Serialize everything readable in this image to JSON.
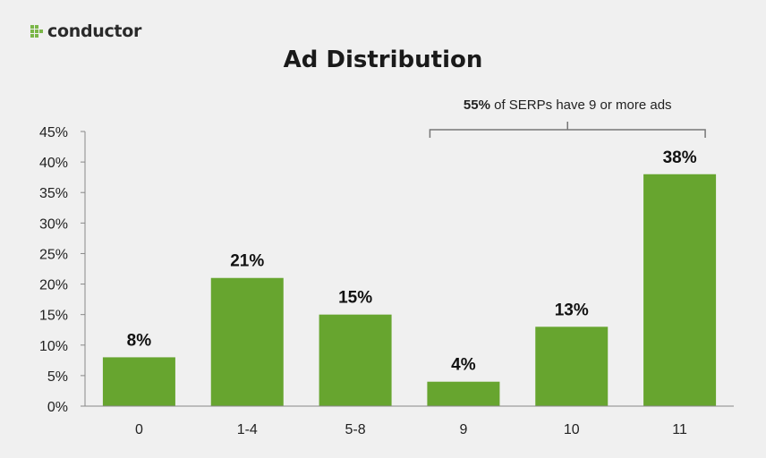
{
  "brand": {
    "name": "conductor",
    "logo_color": "#7ab648"
  },
  "chart_data": {
    "type": "bar",
    "title": "Ad Distribution",
    "xlabel": "",
    "ylabel": "",
    "categories": [
      "0",
      "1-4",
      "5-8",
      "9",
      "10",
      "11"
    ],
    "values": [
      8,
      21,
      15,
      4,
      13,
      38
    ],
    "data_labels": [
      "8%",
      "21%",
      "15%",
      "4%",
      "13%",
      "38%"
    ],
    "ylim": [
      0,
      45
    ],
    "yticks": [
      "0%",
      "5%",
      "10%",
      "15%",
      "20%",
      "25%",
      "30%",
      "35%",
      "40%",
      "45%"
    ],
    "grid": false,
    "bar_color": "#67a52f",
    "annotation": {
      "bold_text": "55%",
      "text": " of SERPs have 9 or more ads",
      "from_category": "9",
      "to_category": "11"
    }
  }
}
